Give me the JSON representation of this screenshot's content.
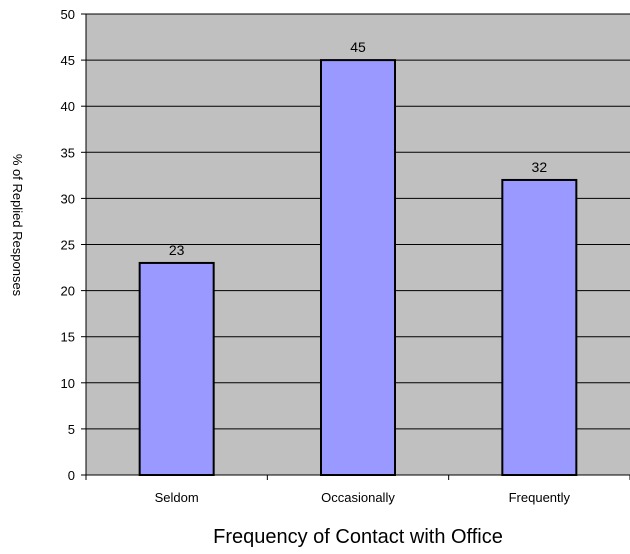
{
  "chart_data": {
    "type": "bar",
    "categories": [
      "Seldom",
      "Occasionally",
      "Frequently"
    ],
    "values": [
      23,
      45,
      32
    ],
    "xlabel": "Frequency of Contact with Office",
    "ylabel": "% of Replied Responses",
    "ylim": [
      0,
      50
    ],
    "yticks": [
      0,
      5,
      10,
      15,
      20,
      25,
      30,
      35,
      40,
      45,
      50
    ],
    "grid": true,
    "legend": "none",
    "colors": {
      "plot_background": "#c0c0c0",
      "bar_fill": "#9999ff",
      "bar_stroke": "#000000",
      "gridline": "#000000"
    }
  }
}
